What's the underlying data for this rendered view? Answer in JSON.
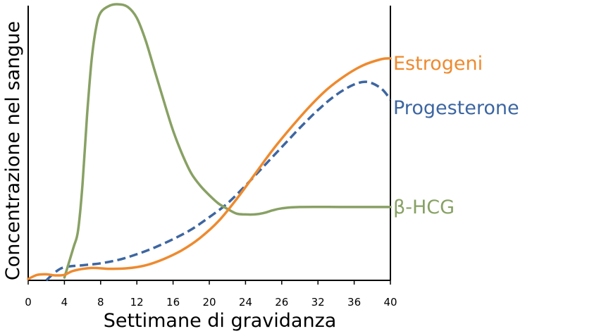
{
  "chart_data": {
    "type": "line",
    "xlabel": "Settimane di gravidanza",
    "ylabel": "Concentrazione nel sangue",
    "x_ticks": [
      "0",
      "4",
      "8",
      "12",
      "16",
      "20",
      "24",
      "26",
      "32",
      "36",
      "40"
    ],
    "xlim": [
      0,
      40
    ],
    "ylim": [
      0,
      100
    ],
    "grid": false,
    "legend": "labels at right end of lines",
    "series": [
      {
        "name": "Estrogeni",
        "color": "#ee8a2e",
        "style": "solid",
        "points": [
          [
            0,
            0.5
          ],
          [
            1,
            2
          ],
          [
            2,
            2.2
          ],
          [
            3,
            1.8
          ],
          [
            4,
            2
          ],
          [
            5,
            3.5
          ],
          [
            7,
            4.5
          ],
          [
            9,
            4.2
          ],
          [
            11,
            4.4
          ],
          [
            13,
            5.5
          ],
          [
            15,
            7.8
          ],
          [
            17,
            11
          ],
          [
            19,
            15.5
          ],
          [
            21,
            21.5
          ],
          [
            23,
            29.5
          ],
          [
            25,
            38.5
          ],
          [
            27,
            47.5
          ],
          [
            29,
            55.5
          ],
          [
            31,
            63
          ],
          [
            33,
            69.5
          ],
          [
            35,
            74.5
          ],
          [
            37,
            78.3
          ],
          [
            39,
            80.5
          ],
          [
            40,
            80.8
          ]
        ]
      },
      {
        "name": "Progesterone",
        "color": "#3d66a1",
        "style": "dashed",
        "points": [
          [
            2,
            0
          ],
          [
            3,
            3
          ],
          [
            4,
            4.8
          ],
          [
            6,
            5.5
          ],
          [
            8,
            6.2
          ],
          [
            10,
            7.5
          ],
          [
            12,
            9.5
          ],
          [
            14,
            12
          ],
          [
            16,
            15
          ],
          [
            18,
            18.5
          ],
          [
            20,
            23
          ],
          [
            22,
            28
          ],
          [
            24,
            34.5
          ],
          [
            26,
            41.5
          ],
          [
            28,
            48.5
          ],
          [
            30,
            55.5
          ],
          [
            32,
            62
          ],
          [
            34,
            67.5
          ],
          [
            36,
            71.3
          ],
          [
            37.5,
            72.2
          ],
          [
            39,
            69.8
          ],
          [
            40,
            65.8
          ]
        ]
      },
      {
        "name": "β-HCG",
        "color": "#88a164",
        "style": "solid",
        "points": [
          [
            4,
            1
          ],
          [
            5,
            12
          ],
          [
            5.5,
            18
          ],
          [
            6,
            35
          ],
          [
            6.5,
            60
          ],
          [
            7,
            80
          ],
          [
            7.5,
            92
          ],
          [
            8,
            97.5
          ],
          [
            9,
            100
          ],
          [
            10,
            100.5
          ],
          [
            11,
            99.5
          ],
          [
            12,
            95.5
          ],
          [
            13,
            87
          ],
          [
            14,
            76
          ],
          [
            15,
            65
          ],
          [
            16,
            54.5
          ],
          [
            17,
            46
          ],
          [
            18,
            39
          ],
          [
            19,
            34.5
          ],
          [
            20,
            31
          ],
          [
            21,
            28
          ],
          [
            22,
            26
          ],
          [
            23,
            24.3
          ],
          [
            24,
            24
          ],
          [
            25,
            24
          ],
          [
            26,
            24.5
          ],
          [
            27,
            25.5
          ],
          [
            28,
            26.2
          ],
          [
            30,
            26.7
          ],
          [
            35,
            26.7
          ],
          [
            40,
            26.7
          ]
        ]
      }
    ]
  }
}
